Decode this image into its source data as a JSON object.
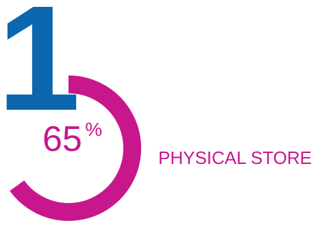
{
  "chart_data": {
    "type": "pie",
    "rank": "1",
    "value": 65,
    "value_text": "65",
    "unit": "%",
    "label": "PHYSICAL STORE",
    "colors": {
      "rank": "#0a67b0",
      "accent": "#c8168c"
    }
  }
}
